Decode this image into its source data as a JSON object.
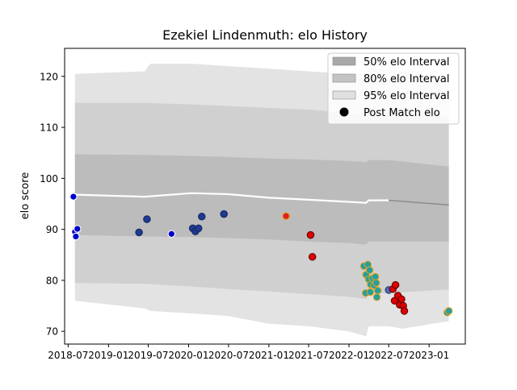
{
  "chart_data": {
    "type": "line",
    "title": "Ezekiel Lindenmuth: elo History",
    "xlabel": "",
    "ylabel": "elo score",
    "xlim": [
      "2018-06-15",
      "2023-06-15"
    ],
    "ylim": [
      67.5,
      125.5
    ],
    "x_ticks": [
      "2018-07",
      "2019-01",
      "2019-07",
      "2020-01",
      "2020-07",
      "2021-01",
      "2021-07",
      "2022-01",
      "2022-07",
      "2023-01"
    ],
    "y_ticks": [
      70,
      80,
      90,
      100,
      110,
      120
    ],
    "grid": false,
    "legend_position": "top-right",
    "legend": [
      {
        "label": "50% elo Interval",
        "kind": "patch",
        "color": "#a8a8a8"
      },
      {
        "label": "80% elo Interval",
        "kind": "patch",
        "color": "#c4c4c4"
      },
      {
        "label": "95% elo Interval",
        "kind": "patch",
        "color": "#e0e0e0"
      },
      {
        "label": "Post Match elo",
        "kind": "marker",
        "color": "#000000"
      }
    ],
    "bands": [
      {
        "name": "95% elo Interval",
        "color": "#e3e3e3",
        "x": [
          "2018-08-01",
          "2019-06-15",
          "2019-07-10",
          "2020-01-15",
          "2020-07-01",
          "2021-01-01",
          "2021-07-01",
          "2022-01-01",
          "2022-03-20",
          "2022-04-01",
          "2022-07-01",
          "2022-09-01",
          "2023-04-01"
        ],
        "upper": [
          120.5,
          121.0,
          122.5,
          122.5,
          122.0,
          121.5,
          121.0,
          120.5,
          120.5,
          121.5,
          121.5,
          121.0,
          119.5
        ],
        "lower": [
          76.0,
          74.5,
          74.0,
          73.5,
          73.0,
          71.5,
          71.0,
          70.0,
          69.0,
          71.0,
          71.0,
          70.5,
          72.0
        ]
      },
      {
        "name": "80% elo Interval",
        "color": "#d0d0d0",
        "x": [
          "2018-08-01",
          "2019-06-15",
          "2020-01-15",
          "2020-07-01",
          "2021-01-01",
          "2021-07-01",
          "2022-01-01",
          "2022-03-20",
          "2022-04-01",
          "2022-07-01",
          "2023-04-01"
        ],
        "upper": [
          114.8,
          114.8,
          114.5,
          114.2,
          113.8,
          113.5,
          112.8,
          112.5,
          113.0,
          113.0,
          112.0
        ],
        "lower": [
          79.5,
          79.3,
          78.8,
          78.3,
          77.8,
          77.3,
          76.8,
          76.3,
          77.5,
          77.5,
          78.2
        ]
      },
      {
        "name": "50% elo Interval",
        "color": "#bcbcbc",
        "x": [
          "2018-08-01",
          "2019-06-15",
          "2020-01-15",
          "2020-07-01",
          "2021-01-01",
          "2021-07-01",
          "2022-01-01",
          "2022-03-20",
          "2022-04-01",
          "2022-07-01",
          "2023-04-01"
        ],
        "upper": [
          104.7,
          104.6,
          104.4,
          104.2,
          103.9,
          103.7,
          103.4,
          103.2,
          103.6,
          103.6,
          102.3
        ],
        "lower": [
          88.9,
          88.6,
          88.5,
          88.3,
          88.0,
          87.6,
          87.3,
          87.0,
          87.6,
          87.6,
          87.6
        ]
      }
    ],
    "mean_line": {
      "x": [
        "2018-08-01",
        "2019-06-15",
        "2020-01-15",
        "2020-07-01",
        "2021-01-01",
        "2021-07-01",
        "2022-01-01",
        "2022-03-20",
        "2022-04-01",
        "2022-07-01",
        "2023-04-01"
      ],
      "y": [
        96.8,
        96.4,
        97.1,
        96.9,
        96.2,
        95.8,
        95.4,
        95.2,
        95.7,
        95.7,
        94.8
      ],
      "color": "#ffffff",
      "fade_start": "2022-08-15",
      "fade_color": "#888888"
    },
    "points": [
      {
        "x": "2018-07-25",
        "y": 96.4,
        "fill": "#0000cc",
        "edge": "#ffffff"
      },
      {
        "x": "2018-08-01",
        "y": 89.5,
        "fill": "#0000cc",
        "edge": "#ffffff"
      },
      {
        "x": "2018-08-05",
        "y": 88.6,
        "fill": "#0000cc",
        "edge": "#ffffff"
      },
      {
        "x": "2018-08-12",
        "y": 90.1,
        "fill": "#0000cc",
        "edge": "#ffffff"
      },
      {
        "x": "2019-05-20",
        "y": 89.4,
        "fill": "#1f3a93",
        "edge": "#16265e"
      },
      {
        "x": "2019-06-25",
        "y": 92.0,
        "fill": "#1f3a93",
        "edge": "#16265e"
      },
      {
        "x": "2019-10-15",
        "y": 89.1,
        "fill": "#0000cc",
        "edge": "#ffffff"
      },
      {
        "x": "2020-01-20",
        "y": 90.2,
        "fill": "#1f3a93",
        "edge": "#16265e"
      },
      {
        "x": "2020-02-01",
        "y": 89.6,
        "fill": "#1f3a93",
        "edge": "#16265e"
      },
      {
        "x": "2020-02-15",
        "y": 90.2,
        "fill": "#1f3a93",
        "edge": "#16265e"
      },
      {
        "x": "2020-03-01",
        "y": 92.5,
        "fill": "#1f3a93",
        "edge": "#16265e"
      },
      {
        "x": "2020-06-10",
        "y": 93.0,
        "fill": "#1f3a93",
        "edge": "#16265e"
      },
      {
        "x": "2021-03-20",
        "y": 92.6,
        "fill": "#e02020",
        "edge": "#e0a020"
      },
      {
        "x": "2021-07-10",
        "y": 88.9,
        "fill": "#dd0000",
        "edge": "#660000"
      },
      {
        "x": "2021-07-18",
        "y": 84.6,
        "fill": "#dd0000",
        "edge": "#660000"
      },
      {
        "x": "2022-03-10",
        "y": 82.8,
        "fill": "#20a0a0",
        "edge": "#e0a020"
      },
      {
        "x": "2022-03-20",
        "y": 81.1,
        "fill": "#20a0a0",
        "edge": "#e0a020"
      },
      {
        "x": "2022-03-28",
        "y": 83.1,
        "fill": "#20a0a0",
        "edge": "#e0a020"
      },
      {
        "x": "2022-04-01",
        "y": 80.2,
        "fill": "#20a0a0",
        "edge": "#e0a020"
      },
      {
        "x": "2022-04-05",
        "y": 82.0,
        "fill": "#20a0a0",
        "edge": "#e0a020"
      },
      {
        "x": "2022-04-10",
        "y": 79.2,
        "fill": "#20a0a0",
        "edge": "#e0a020"
      },
      {
        "x": "2022-04-18",
        "y": 80.4,
        "fill": "#20a0a0",
        "edge": "#e0a020"
      },
      {
        "x": "2022-04-25",
        "y": 79.0,
        "fill": "#20a0a0",
        "edge": "#e0a020"
      },
      {
        "x": "2022-05-01",
        "y": 80.7,
        "fill": "#20a0a0",
        "edge": "#e0a020"
      },
      {
        "x": "2022-05-05",
        "y": 79.5,
        "fill": "#20a0a0",
        "edge": "#e0a020"
      },
      {
        "x": "2022-05-08",
        "y": 76.7,
        "fill": "#20a0a0",
        "edge": "#e0a020"
      },
      {
        "x": "2022-05-12",
        "y": 78.0,
        "fill": "#20a0a0",
        "edge": "#e0a020"
      },
      {
        "x": "2022-03-18",
        "y": 77.5,
        "fill": "#20a0a0",
        "edge": "#e0a020"
      },
      {
        "x": "2022-04-08",
        "y": 77.7,
        "fill": "#20a0a0",
        "edge": "#e0a020"
      },
      {
        "x": "2022-07-01",
        "y": 78.1,
        "fill": "#4a6bb3",
        "edge": "#2a3f73"
      },
      {
        "x": "2022-07-20",
        "y": 78.3,
        "fill": "#dd0000",
        "edge": "#660000"
      },
      {
        "x": "2022-08-01",
        "y": 79.1,
        "fill": "#dd0000",
        "edge": "#660000"
      },
      {
        "x": "2022-07-28",
        "y": 76.0,
        "fill": "#dd0000",
        "edge": "#660000"
      },
      {
        "x": "2022-08-12",
        "y": 77.0,
        "fill": "#dd0000",
        "edge": "#660000"
      },
      {
        "x": "2022-08-20",
        "y": 75.2,
        "fill": "#dd0000",
        "edge": "#660000"
      },
      {
        "x": "2022-08-28",
        "y": 76.3,
        "fill": "#dd0000",
        "edge": "#660000"
      },
      {
        "x": "2022-09-05",
        "y": 75.0,
        "fill": "#dd0000",
        "edge": "#660000"
      },
      {
        "x": "2022-09-10",
        "y": 74.0,
        "fill": "#dd0000",
        "edge": "#660000"
      },
      {
        "x": "2023-03-25",
        "y": 73.7,
        "fill": "#20a0a0",
        "edge": "#e0a020"
      },
      {
        "x": "2023-04-01",
        "y": 74.0,
        "fill": "#20a0a0",
        "edge": "#e0a020"
      }
    ]
  }
}
